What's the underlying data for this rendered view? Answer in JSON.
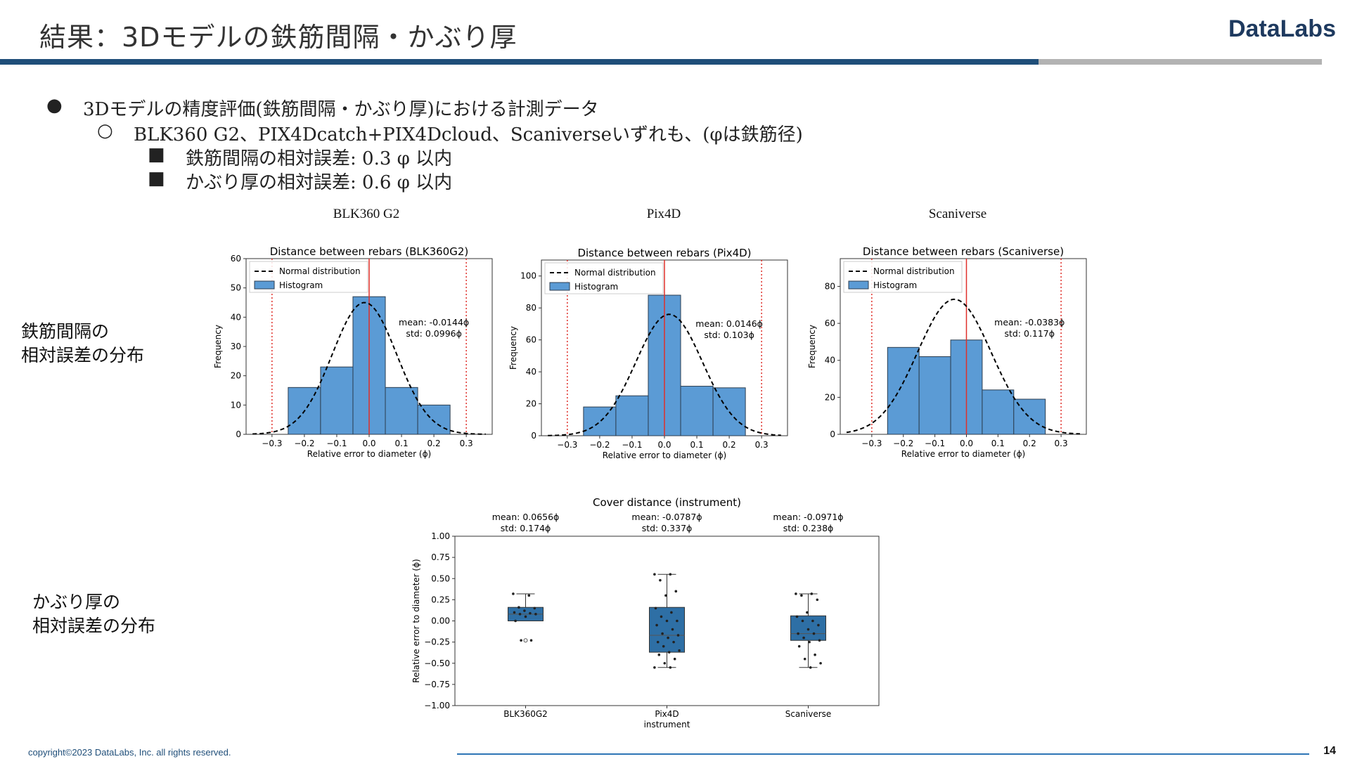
{
  "header": {
    "title": "結果：3Dモデルの鉄筋間隔・かぶり厚",
    "logo": "DataLabs"
  },
  "bullets": [
    {
      "level": 1,
      "marker": "●",
      "text": "3Dモデルの精度評価(鉄筋間隔・かぶり厚)における計測データ"
    },
    {
      "level": 2,
      "marker": "○",
      "text": "BLK360 G2、PIX4Dcatch+PIX4Dcloud、Scaniverseいずれも、(φは鉄筋径)"
    },
    {
      "level": 3,
      "marker": "■",
      "text": "鉄筋間隔の相対誤差: 0.3 φ 以内"
    },
    {
      "level": 3,
      "marker": "■",
      "text": "かぶり厚の相対誤差: 0.6 φ 以内"
    }
  ],
  "column_titles": [
    "BLK360 G2",
    "Pix4D",
    "Scaniverse"
  ],
  "row_labels": {
    "spacing": "鉄筋間隔の\n相対誤差の分布",
    "cover": "かぶり厚の\n相対誤差の分布"
  },
  "legend": {
    "normal": "Normal distribution",
    "hist": "Histogram"
  },
  "colors": {
    "bar": "#5b9bd5",
    "bar_edge": "#2c3e50",
    "box": "#2e6fa5",
    "redline": "#e0302a",
    "header_bar": "#1f4e79",
    "accent_gray": "#b3b3b3"
  },
  "chart_data": [
    {
      "type": "bar",
      "title": "Distance between rebars (BLK360G2)",
      "xlabel": "Relative error to diameter (ϕ)",
      "ylabel": "Frequency",
      "bin_edges": [
        -0.25,
        -0.15,
        -0.05,
        0.05,
        0.15,
        0.25
      ],
      "values": [
        16,
        23,
        47,
        16,
        10
      ],
      "xlim": [
        -0.38,
        0.38
      ],
      "ylim": [
        0,
        60
      ],
      "yticks": [
        0,
        10,
        20,
        30,
        40,
        50,
        60
      ],
      "xticks": [
        -0.3,
        -0.2,
        -0.1,
        0.0,
        0.1,
        0.2,
        0.3
      ],
      "xtick_labels": [
        "−0.3",
        "−0.2",
        "−0.1",
        "0.0",
        "0.1",
        "0.2",
        "0.3"
      ],
      "normal_mean": -0.0144,
      "normal_std": 0.0996,
      "normal_peak": 45,
      "vlines_dotted": [
        -0.3,
        0.3
      ],
      "vline_solid": 0.0,
      "annotation": [
        "mean: -0.0144ϕ",
        "std: 0.0996ϕ"
      ],
      "legend": "top-left"
    },
    {
      "type": "bar",
      "title": "Distance between rebars (Pix4D)",
      "xlabel": "Relative error to diameter (ϕ)",
      "ylabel": "Frequency",
      "bin_edges": [
        -0.25,
        -0.15,
        -0.05,
        0.05,
        0.15,
        0.25
      ],
      "values": [
        18,
        25,
        88,
        31,
        30
      ],
      "xlim": [
        -0.38,
        0.38
      ],
      "ylim": [
        0,
        110
      ],
      "yticks": [
        0,
        20,
        40,
        60,
        80,
        100
      ],
      "xticks": [
        -0.3,
        -0.2,
        -0.1,
        0.0,
        0.1,
        0.2,
        0.3
      ],
      "xtick_labels": [
        "−0.3",
        "−0.2",
        "−0.1",
        "0.0",
        "0.1",
        "0.2",
        "0.3"
      ],
      "normal_mean": 0.0146,
      "normal_std": 0.103,
      "normal_peak": 76,
      "vlines_dotted": [
        -0.3,
        0.3
      ],
      "vline_solid": 0.0,
      "annotation": [
        "mean: 0.0146ϕ",
        "std: 0.103ϕ"
      ],
      "legend": "top-left"
    },
    {
      "type": "bar",
      "title": "Distance between rebars (Scaniverse)",
      "xlabel": "Relative error to diameter (ϕ)",
      "ylabel": "Frequency",
      "bin_edges": [
        -0.25,
        -0.15,
        -0.05,
        0.05,
        0.15,
        0.25
      ],
      "values": [
        47,
        42,
        51,
        24,
        19
      ],
      "xlim": [
        -0.4,
        0.38
      ],
      "ylim": [
        0,
        95
      ],
      "yticks": [
        0,
        20,
        40,
        60,
        80
      ],
      "xticks": [
        -0.3,
        -0.2,
        -0.1,
        0.0,
        0.1,
        0.2,
        0.3
      ],
      "xtick_labels": [
        "−0.3",
        "−0.2",
        "−0.1",
        "0.0",
        "0.1",
        "0.2",
        "0.3"
      ],
      "normal_mean": -0.0383,
      "normal_std": 0.117,
      "normal_peak": 73,
      "vlines_dotted": [
        -0.3,
        0.3
      ],
      "vline_solid": 0.0,
      "annotation": [
        "mean: -0.0383ϕ",
        "std: 0.117ϕ"
      ],
      "legend": "top-left"
    },
    {
      "type": "box",
      "title": "Cover distance (instrument)",
      "ylabel": "Relative error to diameter (ϕ)",
      "xlabel": "instrument",
      "categories": [
        "BLK360G2",
        "Pix4D",
        "Scaniverse"
      ],
      "ylim": [
        -1.0,
        1.0
      ],
      "yticks": [
        -1.0,
        -0.75,
        -0.5,
        -0.25,
        0.0,
        0.25,
        0.5,
        0.75,
        1.0
      ],
      "ytick_labels": [
        "−1.00",
        "−0.75",
        "−0.50",
        "−0.25",
        "0.00",
        "0.25",
        "0.50",
        "0.75",
        "1.00"
      ],
      "stats": [
        {
          "q1": 0.0,
          "median": 0.08,
          "q3": 0.16,
          "whisker_low": 0.0,
          "whisker_high": 0.32,
          "outliers": [
            -0.23
          ],
          "points": [
            0.32,
            0.3,
            0.16,
            0.15,
            0.12,
            0.1,
            0.09,
            0.08,
            0.08,
            0.05,
            0.0,
            -0.23,
            -0.23
          ]
        },
        {
          "q1": -0.37,
          "median": -0.17,
          "q3": 0.16,
          "whisker_low": -0.55,
          "whisker_high": 0.55,
          "outliers": [],
          "points": [
            0.55,
            0.55,
            0.48,
            0.35,
            0.3,
            0.15,
            0.1,
            0.05,
            0.0,
            0.0,
            -0.05,
            -0.1,
            -0.15,
            -0.17,
            -0.2,
            -0.25,
            -0.25,
            -0.3,
            -0.35,
            -0.37,
            -0.4,
            -0.45,
            -0.5,
            -0.55,
            -0.55
          ]
        },
        {
          "q1": -0.23,
          "median": -0.15,
          "q3": 0.06,
          "whisker_low": -0.55,
          "whisker_high": 0.32,
          "outliers": [],
          "points": [
            0.32,
            0.32,
            0.3,
            0.25,
            0.1,
            0.05,
            0.0,
            0.0,
            -0.05,
            -0.1,
            -0.15,
            -0.15,
            -0.2,
            -0.23,
            -0.25,
            -0.3,
            -0.4,
            -0.45,
            -0.5,
            -0.55
          ]
        }
      ],
      "annotations": [
        [
          "mean: 0.0656ϕ",
          "std: 0.174ϕ"
        ],
        [
          "mean: -0.0787ϕ",
          "std: 0.337ϕ"
        ],
        [
          "mean: -0.0971ϕ",
          "std: 0.238ϕ"
        ]
      ]
    }
  ],
  "footer": {
    "copyright": "copyright©2023 DataLabs, Inc. all rights reserved.",
    "page": "14"
  }
}
